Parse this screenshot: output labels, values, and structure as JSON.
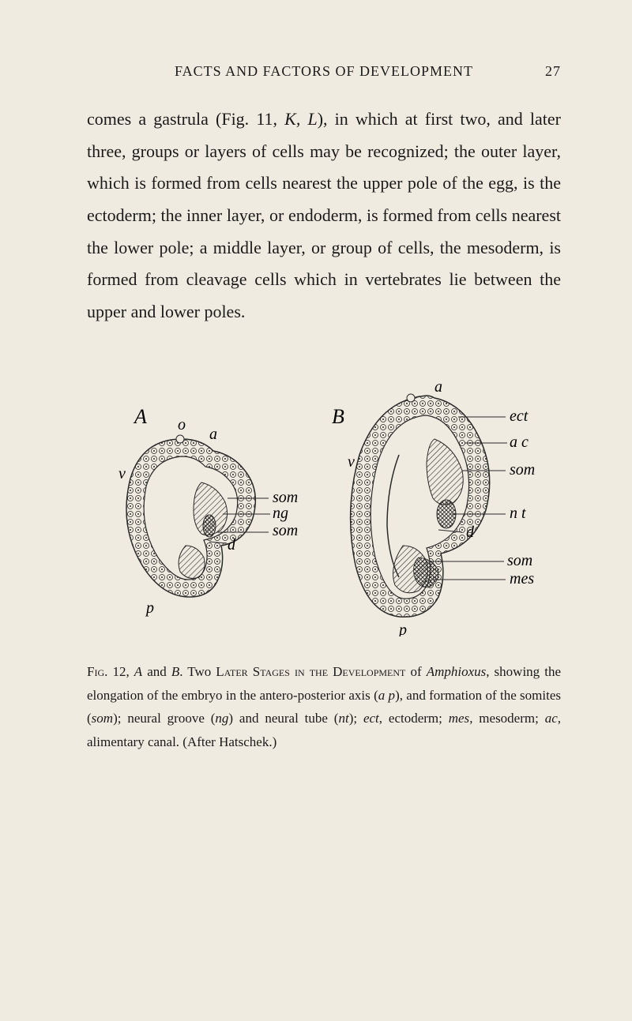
{
  "header": {
    "title": "FACTS AND FACTORS OF DEVELOPMENT",
    "page_number": "27"
  },
  "body_text": "comes a gastrula (Fig. 11, <em>K, L</em>), in which at first two, and later three, groups or layers of cells may be recognized; the outer layer, which is formed from cells nearest the upper pole of the egg, is the ectoderm; the inner layer, or endoderm, is formed from cells near­est the lower pole; a middle layer, or group of cells, the mesoderm, is formed from cleav­age cells which in vertebrates lie between the upper and lower poles.",
  "figure": {
    "labels": {
      "A": "A",
      "B": "B",
      "a": "a",
      "v": "v",
      "p": "p",
      "d": "d",
      "som": "som",
      "ng": "ng",
      "ect": "ect",
      "ac": "a c",
      "nt": "n t",
      "mes": "mes",
      "o": "o"
    },
    "colors": {
      "stroke": "#2a2a2a",
      "bg": "#f0ebe0",
      "hatch": "#2a2a2a"
    }
  },
  "caption": "<span class=\"caption-lead\">Fig.</span> 12, <em>A</em> and <em>B</em>. Two <span class=\"caption-lead\">Later Stages in the Development</span> of <em>Amphioxus</em>, showing the elongation of the embryo in the antero-posterior axis (<em>a p</em>), and formation of the somites (<em>som</em>); neural groove (<em>ng</em>) and neural tube (<em>nt</em>); <em>ect</em>, ecto­derm; <em>mes</em>, mesoderm; <em>ac</em>, alimentary canal. (After Hatschek.)"
}
